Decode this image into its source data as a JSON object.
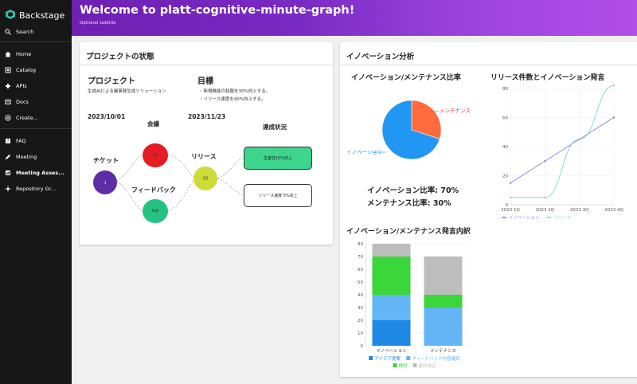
{
  "sidebar": {
    "brand": "Backstage",
    "search": "Search",
    "items": [
      {
        "label": "Home",
        "icon": "home-icon"
      },
      {
        "label": "Catalog",
        "icon": "catalog-icon"
      },
      {
        "label": "APIs",
        "icon": "apis-icon"
      },
      {
        "label": "Docs",
        "icon": "docs-icon"
      },
      {
        "label": "Create...",
        "icon": "create-icon"
      },
      {
        "label": "FAQ",
        "icon": "faq-icon"
      },
      {
        "label": "Meeting",
        "icon": "meeting-icon"
      },
      {
        "label": "Meeting Asses...",
        "icon": "assessment-icon"
      },
      {
        "label": "Repository Gr...",
        "icon": "graph-icon"
      }
    ]
  },
  "header": {
    "title": "Welcome to platt-cognitive-minute-graph!",
    "subtitle": "Optional subtitle"
  },
  "project_card": {
    "title": "プロジェクトの状態",
    "project_heading": "プロジェクト",
    "project_desc": "生成AIによる議事録生成ソリューション",
    "goal_heading": "目標",
    "goals": [
      "・新規機能の話題を30%向上する。",
      "・リリース速度を40%向上する。"
    ],
    "graph": {
      "date_start": "2023/10/01",
      "date_mid": "2023/11/23",
      "meeting_label": "会議",
      "ticket_label": "チケット",
      "feedback_label": "フィードバック",
      "release_label": "リリース",
      "achievement_label": "達成状況",
      "ticket_value": "3",
      "meeting_value": "4件",
      "feedback_value": "10件",
      "release_value": "2回",
      "achievement_1": "生産性10%向上",
      "achievement_2": "リリース速度 5%向上"
    }
  },
  "innovation_card": {
    "title": "イノベーション分析",
    "pie_title": "イノベーション/メンテナンス比率",
    "innovation_ratio_text": "イノベーション比率: 70%",
    "maintenance_ratio_text": "メンテナンス比率: 30%",
    "line_title": "リリース件数とイノベーション発言",
    "bar_title": "イノベーション/メンテナンス発言内訳"
  },
  "colors": {
    "sidebar_bg": "#171717",
    "header_start": "#6f1fb2",
    "header_end": "#b34ee8",
    "innovation": "#2196f3",
    "maintenance": "#ff6b3d",
    "ticket_node": "#5e2ca5",
    "meeting_node": "#e51c23",
    "feedback_node": "#26c281",
    "release_node": "#cddc39",
    "achievement_box": "#3dd68c"
  },
  "chart_data": [
    {
      "type": "pie",
      "title": "イノベーション/メンテナンス比率",
      "labels": [
        "イノベーション",
        "メンテナンス"
      ],
      "values": [
        70,
        30
      ],
      "colors": [
        "#2196f3",
        "#ff6b3d"
      ]
    },
    {
      "type": "line",
      "title": "リリース件数とイノベーション発言",
      "categories": [
        "2023 1Q",
        "2023 2Q",
        "2023 3Q",
        "2023 4Q"
      ],
      "ylim": [
        0,
        80
      ],
      "yticks": [
        0,
        20,
        40,
        60,
        80
      ],
      "series": [
        {
          "name": "イノベーション",
          "values": [
            15,
            30,
            45,
            60
          ],
          "color": "#8b84e8"
        },
        {
          "name": "リリース",
          "values": [
            5,
            5,
            45,
            82
          ],
          "color": "#7fd8be"
        }
      ],
      "legend": "bottom"
    },
    {
      "type": "bar",
      "title": "イノベーション/メンテナンス発言内訳",
      "stacked": true,
      "categories": [
        "イノベーション",
        "メンテナンス"
      ],
      "ylim": [
        0,
        80
      ],
      "yticks": [
        0,
        10,
        20,
        30,
        40,
        50,
        60,
        70,
        80
      ],
      "series": [
        {
          "name": "アイデア提案",
          "values": [
            20,
            0
          ],
          "color": "#1e88e5"
        },
        {
          "name": "フィードバック内容確認",
          "values": [
            20,
            30
          ],
          "color": "#64b5f6"
        },
        {
          "name": "検討",
          "values": [
            30,
            10
          ],
          "color": "#3ad63a"
        },
        {
          "name": "最終決定",
          "values": [
            10,
            30
          ],
          "color": "#bdbdbd"
        }
      ],
      "legend": "bottom"
    }
  ]
}
